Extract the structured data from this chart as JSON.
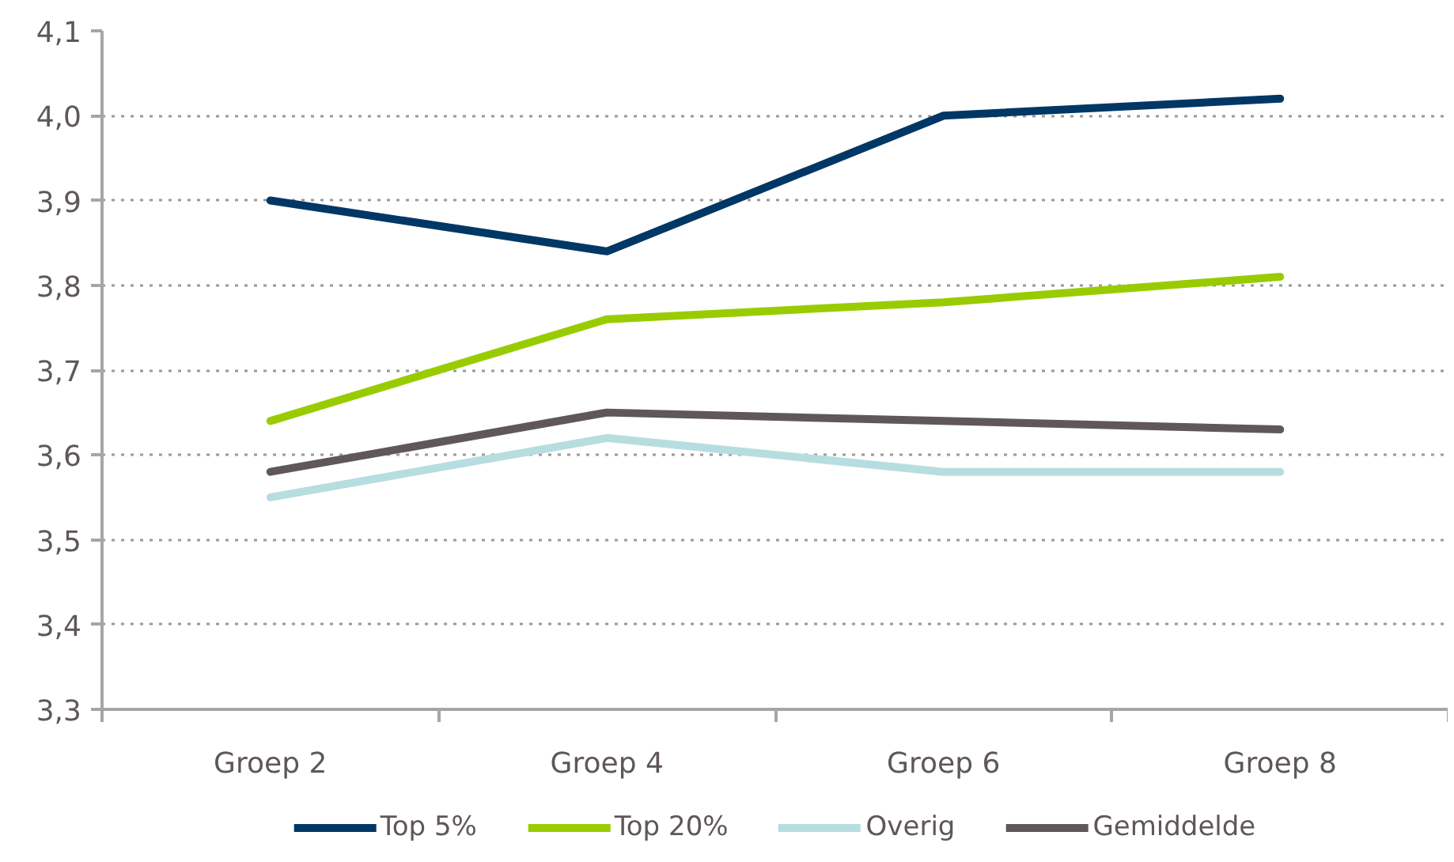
{
  "chart_data": {
    "type": "line",
    "categories": [
      "Groep 2",
      "Groep 4",
      "Groep 6",
      "Groep 8"
    ],
    "series": [
      {
        "name": "Top 5%",
        "color": "#003764",
        "values": [
          3.9,
          3.84,
          4.0,
          4.02
        ]
      },
      {
        "name": "Top 20%",
        "color": "#99cc00",
        "values": [
          3.64,
          3.76,
          3.78,
          3.81
        ]
      },
      {
        "name": "Overig",
        "color": "#b7dde0",
        "values": [
          3.55,
          3.62,
          3.58,
          3.58
        ]
      },
      {
        "name": "Gemiddelde",
        "color": "#605858",
        "values": [
          3.58,
          3.65,
          3.64,
          3.63
        ]
      }
    ],
    "ylim": [
      3.3,
      4.1
    ],
    "yticks": [
      {
        "value": 3.3,
        "label": "3,3"
      },
      {
        "value": 3.4,
        "label": "3,4"
      },
      {
        "value": 3.5,
        "label": "3,5"
      },
      {
        "value": 3.6,
        "label": "3,6"
      },
      {
        "value": 3.7,
        "label": "3,7"
      },
      {
        "value": 3.8,
        "label": "3,8"
      },
      {
        "value": 3.9,
        "label": "3,9"
      },
      {
        "value": 4.0,
        "label": "4,0"
      },
      {
        "value": 4.1,
        "label": "4,1"
      }
    ],
    "grid": "y",
    "legend": "bottom",
    "line_style": "solid"
  }
}
